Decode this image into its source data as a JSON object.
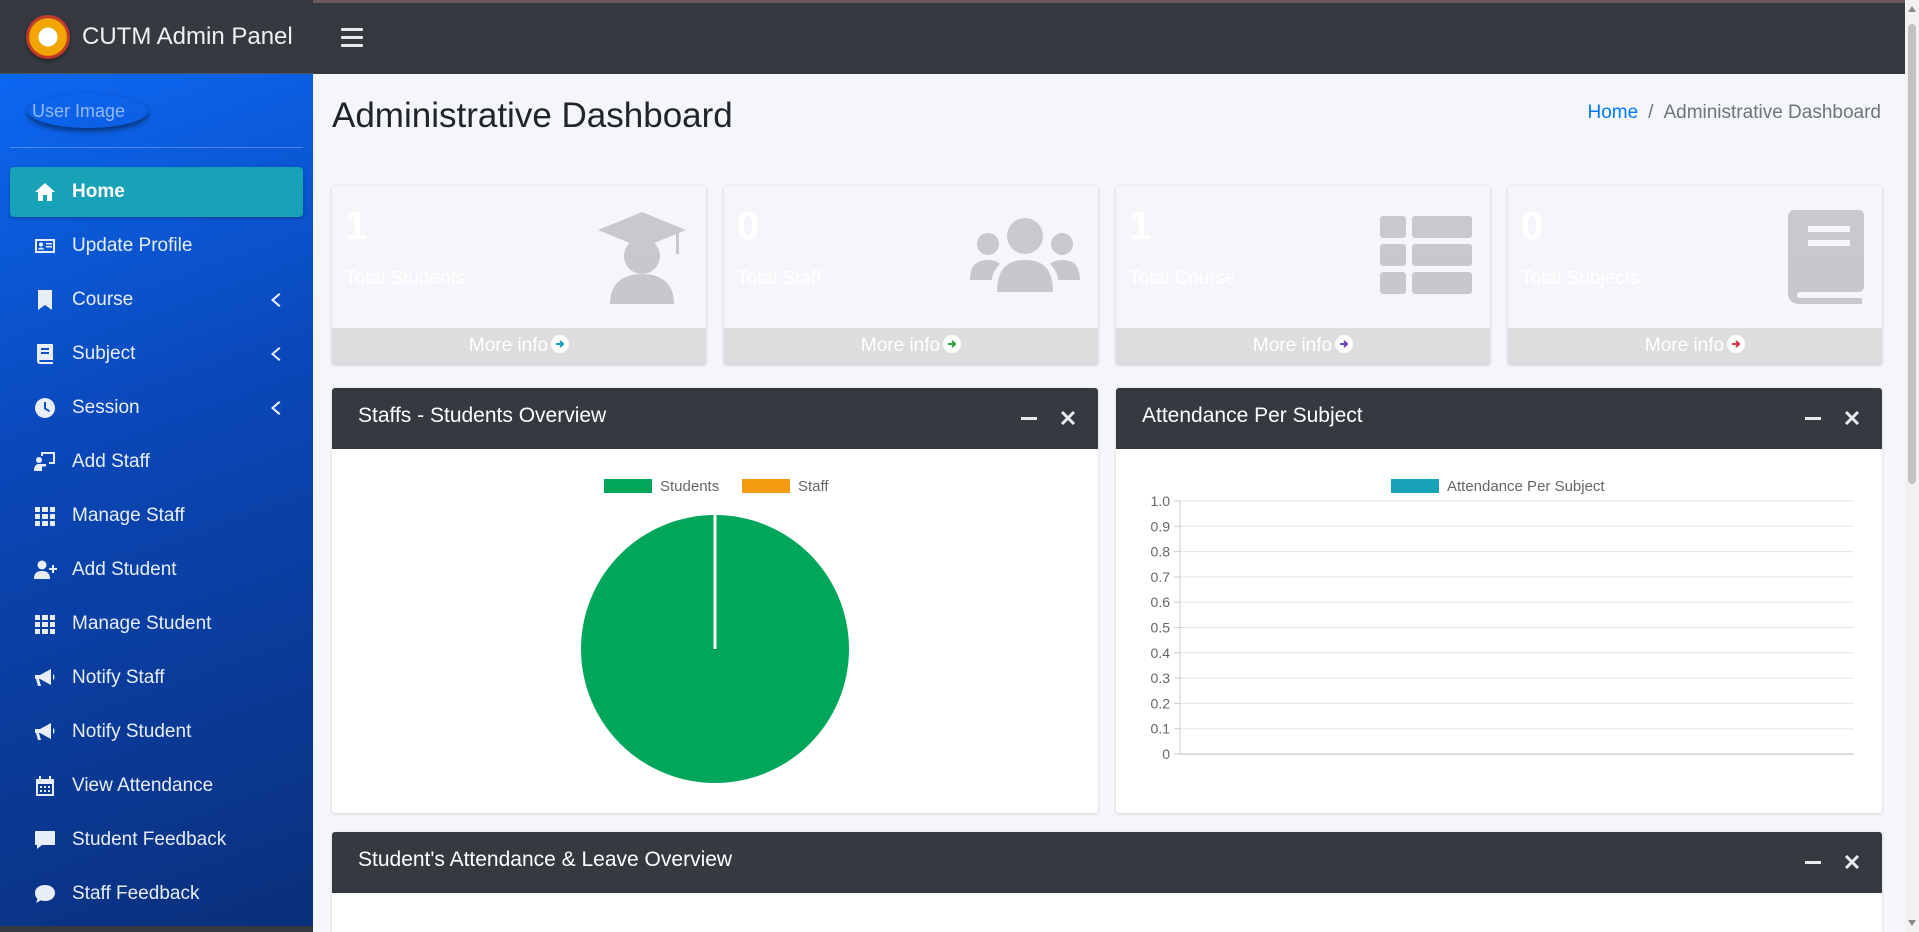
{
  "brand": {
    "title": "CUTM Admin Panel"
  },
  "user_panel": {
    "image_alt": "User Image"
  },
  "sidebar": {
    "items": [
      {
        "label": "Home",
        "icon": "home-icon",
        "active": true,
        "has_submenu": false
      },
      {
        "label": "Update Profile",
        "icon": "id-card-icon",
        "active": false,
        "has_submenu": false
      },
      {
        "label": "Course",
        "icon": "bookmark-icon",
        "active": false,
        "has_submenu": true
      },
      {
        "label": "Subject",
        "icon": "book-icon",
        "active": false,
        "has_submenu": true
      },
      {
        "label": "Session",
        "icon": "clock-icon",
        "active": false,
        "has_submenu": true
      },
      {
        "label": "Add Staff",
        "icon": "chalkboard-teacher-icon",
        "active": false,
        "has_submenu": false
      },
      {
        "label": "Manage Staff",
        "icon": "grid-icon",
        "active": false,
        "has_submenu": false
      },
      {
        "label": "Add Student",
        "icon": "user-plus-icon",
        "active": false,
        "has_submenu": false
      },
      {
        "label": "Manage Student",
        "icon": "grid-icon",
        "active": false,
        "has_submenu": false
      },
      {
        "label": "Notify Staff",
        "icon": "megaphone-icon",
        "active": false,
        "has_submenu": false
      },
      {
        "label": "Notify Student",
        "icon": "megaphone-icon",
        "active": false,
        "has_submenu": false
      },
      {
        "label": "View Attendance",
        "icon": "calendar-icon",
        "active": false,
        "has_submenu": false
      },
      {
        "label": "Student Feedback",
        "icon": "comment-square-icon",
        "active": false,
        "has_submenu": false
      },
      {
        "label": "Staff Feedback",
        "icon": "comment-icon",
        "active": false,
        "has_submenu": false
      }
    ]
  },
  "header": {
    "page_title": "Administrative Dashboard",
    "breadcrumb": {
      "home": "Home",
      "separator": "/",
      "current": "Administrative Dashboard"
    }
  },
  "stat_boxes": [
    {
      "value": "1",
      "label": "Total Students",
      "footer": "More info",
      "color": "#17a2b8",
      "icon": "graduate-icon"
    },
    {
      "value": "0",
      "label": "Total Staff",
      "footer": "More info",
      "color": "#28a745",
      "icon": "users-icon"
    },
    {
      "value": "1",
      "label": "Total Course",
      "footer": "More info",
      "color": "#6f42c1",
      "icon": "th-list-icon"
    },
    {
      "value": "0",
      "label": "Total Subjects",
      "footer": "More info",
      "color": "#dc3545",
      "icon": "book-icon"
    }
  ],
  "cards": {
    "overview": {
      "title": "Staffs - Students Overview"
    },
    "attendance": {
      "title": "Attendance Per Subject"
    },
    "leave": {
      "title": "Student's Attendance & Leave Overview"
    }
  },
  "chart_data": [
    {
      "type": "pie",
      "labels": [
        "Students",
        "Staff"
      ],
      "values": [
        1,
        0
      ],
      "colors": [
        "#00a65a",
        "#f39c12"
      ],
      "legend": "top"
    },
    {
      "type": "bar",
      "categories": [],
      "series": [
        {
          "name": "Attendance Per Subject",
          "values": []
        }
      ],
      "colors": [
        "#17a2b8"
      ],
      "ylim": [
        0,
        1.0
      ],
      "yticks": [
        "1.0",
        "0.9",
        "0.8",
        "0.7",
        "0.6",
        "0.5",
        "0.4",
        "0.3",
        "0.2",
        "0.1",
        "0"
      ],
      "grid": true,
      "legend": "top"
    }
  ]
}
